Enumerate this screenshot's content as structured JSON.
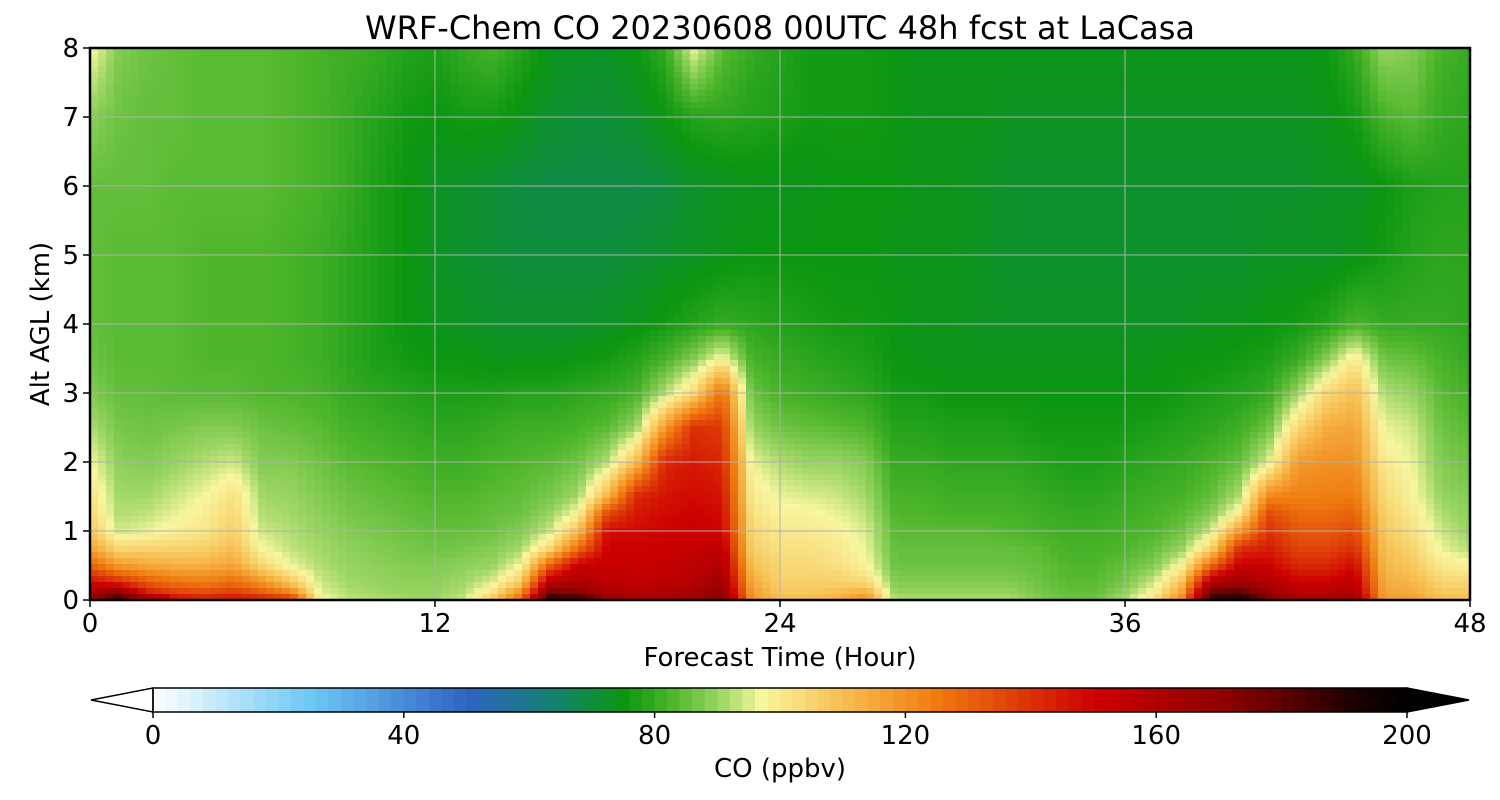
{
  "chart_data": {
    "type": "heatmap",
    "title": "WRF-Chem CO  20230608 00UTC 48h fcst at LaCasa",
    "xlabel": "Forecast Time (Hour)",
    "ylabel": "Alt AGL (km)",
    "xlim": [
      0,
      48
    ],
    "ylim": [
      0,
      8
    ],
    "xticks": [
      "0",
      "12",
      "24",
      "36",
      "48"
    ],
    "yticks": [
      "0",
      "1",
      "2",
      "3",
      "4",
      "5",
      "6",
      "7",
      "8"
    ],
    "grid": true,
    "colorbar": {
      "label": "CO  (ppbv)",
      "range": [
        0,
        200
      ],
      "ticks": [
        "0",
        "40",
        "80",
        "120",
        "160",
        "200"
      ],
      "extend": "both",
      "orientation": "horizontal",
      "stops": [
        {
          "v": 0,
          "c": "#ffffff"
        },
        {
          "v": 25,
          "c": "#6ec8f5"
        },
        {
          "v": 50,
          "c": "#2f63c4"
        },
        {
          "v": 65,
          "c": "#13846a"
        },
        {
          "v": 75,
          "c": "#0b9611"
        },
        {
          "v": 83,
          "c": "#4fb62c"
        },
        {
          "v": 91,
          "c": "#a2d868"
        },
        {
          "v": 97,
          "c": "#f8f6a0"
        },
        {
          "v": 110,
          "c": "#f7bf52"
        },
        {
          "v": 125,
          "c": "#ef7b0f"
        },
        {
          "v": 150,
          "c": "#cd0000"
        },
        {
          "v": 172,
          "c": "#8a0000"
        },
        {
          "v": 192,
          "c": "#1a0000"
        },
        {
          "v": 200,
          "c": "#000000"
        }
      ]
    },
    "field": {
      "x": [
        0,
        1,
        2,
        3,
        4,
        5,
        6,
        7,
        8,
        9,
        10,
        11,
        12,
        13,
        14,
        15,
        16,
        17,
        18,
        19,
        20,
        21,
        22,
        23,
        24,
        25,
        26,
        27,
        28,
        29,
        30,
        31,
        32,
        33,
        34,
        35,
        36,
        37,
        38,
        39,
        40,
        41,
        42,
        43,
        44,
        45,
        46,
        47,
        48
      ],
      "y": [
        0,
        0.1,
        0.25,
        0.5,
        0.75,
        1,
        1.25,
        1.5,
        2,
        2.5,
        3,
        3.5,
        4,
        5,
        6,
        7,
        8
      ],
      "z_ppbv": [
        [
          170,
          188,
          172,
          150,
          146,
          148,
          146,
          140,
          98,
          93,
          92,
          91,
          91,
          94,
          108,
          130,
          194,
          190,
          172,
          165,
          165,
          167,
          175,
          120,
          110,
          110,
          114,
          122,
          92,
          92,
          92,
          92,
          92,
          88,
          86,
          86,
          92,
          102,
          122,
          192,
          195,
          175,
          165,
          165,
          165,
          118,
          118,
          110,
          110
        ],
        [
          162,
          172,
          145,
          137,
          135,
          138,
          132,
          124,
          96,
          92,
          91,
          90,
          90,
          92,
          102,
          122,
          175,
          172,
          162,
          158,
          160,
          162,
          170,
          118,
          108,
          108,
          110,
          115,
          90,
          90,
          90,
          90,
          90,
          87,
          85,
          85,
          90,
          98,
          118,
          178,
          182,
          168,
          158,
          158,
          160,
          116,
          115,
          108,
          108
        ],
        [
          148,
          142,
          132,
          127,
          125,
          128,
          120,
          108,
          94,
          91,
          90,
          89,
          89,
          91,
          95,
          108,
          158,
          160,
          156,
          154,
          156,
          158,
          165,
          115,
          106,
          106,
          106,
          104,
          88,
          88,
          88,
          88,
          88,
          86,
          84,
          84,
          87,
          94,
          110,
          160,
          165,
          158,
          150,
          150,
          155,
          114,
          112,
          105,
          104
        ],
        [
          130,
          118,
          115,
          113,
          113,
          116,
          104,
          96,
          92,
          90,
          89,
          88,
          88,
          89,
          90,
          97,
          130,
          152,
          152,
          152,
          153,
          155,
          160,
          110,
          104,
          104,
          102,
          98,
          86,
          86,
          86,
          86,
          86,
          85,
          83,
          83,
          85,
          88,
          98,
          128,
          152,
          150,
          142,
          142,
          148,
          112,
          108,
          100,
          98
        ],
        [
          116,
          104,
          105,
          105,
          106,
          110,
          97,
          93,
          91,
          89,
          88,
          87,
          86,
          87,
          88,
          91,
          104,
          128,
          150,
          150,
          151,
          153,
          155,
          106,
          102,
          102,
          100,
          96,
          85,
          85,
          85,
          85,
          85,
          84,
          82,
          82,
          83,
          85,
          90,
          105,
          140,
          144,
          136,
          136,
          140,
          110,
          105,
          96,
          92
        ],
        [
          108,
          94,
          96,
          99,
          101,
          106,
          94,
          92,
          90,
          88,
          87,
          86,
          85,
          85,
          86,
          88,
          94,
          110,
          148,
          148,
          150,
          151,
          150,
          104,
          100,
          100,
          98,
          95,
          84,
          84,
          84,
          84,
          83,
          82,
          81,
          81,
          82,
          83,
          86,
          94,
          118,
          140,
          132,
          132,
          135,
          108,
          102,
          94,
          90
        ],
        [
          104,
          92,
          93,
          96,
          99,
          104,
          92,
          91,
          89,
          87,
          86,
          85,
          84,
          84,
          85,
          86,
          90,
          98,
          135,
          145,
          148,
          150,
          148,
          102,
          98,
          98,
          96,
          93,
          83,
          83,
          82,
          82,
          82,
          81,
          80,
          80,
          81,
          82,
          84,
          88,
          100,
          135,
          128,
          128,
          130,
          106,
          100,
          92,
          89
        ],
        [
          102,
          91,
          91,
          94,
          97,
          102,
          91,
          90,
          88,
          86,
          85,
          84,
          83,
          83,
          84,
          85,
          87,
          91,
          112,
          142,
          146,
          148,
          146,
          100,
          96,
          95,
          94,
          91,
          82,
          82,
          81,
          81,
          81,
          80,
          79,
          79,
          80,
          81,
          82,
          85,
          92,
          122,
          124,
          124,
          125,
          104,
          98,
          90,
          88
        ],
        [
          97,
          89,
          88,
          90,
          92,
          94,
          88,
          88,
          86,
          84,
          83,
          82,
          81,
          81,
          82,
          83,
          84,
          86,
          92,
          110,
          142,
          145,
          142,
          96,
          92,
          90,
          90,
          88,
          80,
          80,
          79,
          79,
          79,
          78,
          77,
          77,
          78,
          79,
          80,
          82,
          85,
          95,
          118,
          120,
          120,
          100,
          96,
          88,
          86
        ],
        [
          92,
          87,
          86,
          87,
          88,
          88,
          86,
          85,
          84,
          82,
          81,
          80,
          79,
          79,
          80,
          81,
          81,
          82,
          84,
          90,
          118,
          140,
          138,
          90,
          86,
          85,
          84,
          83,
          78,
          78,
          77,
          77,
          77,
          76,
          76,
          76,
          76,
          77,
          78,
          79,
          81,
          86,
          104,
          114,
          116,
          96,
          94,
          86,
          84
        ],
        [
          88,
          85,
          85,
          84,
          84,
          84,
          83,
          83,
          82,
          80,
          79,
          78,
          77,
          77,
          77,
          78,
          78,
          79,
          80,
          82,
          92,
          104,
          128,
          86,
          82,
          81,
          80,
          79,
          76,
          76,
          75,
          75,
          75,
          75,
          75,
          75,
          75,
          75,
          76,
          77,
          78,
          80,
          90,
          104,
          110,
          92,
          90,
          84,
          82
        ],
        [
          86,
          84,
          84,
          84,
          83,
          83,
          83,
          82,
          81,
          79,
          77,
          76,
          75,
          75,
          74,
          74,
          74,
          75,
          76,
          78,
          82,
          88,
          98,
          82,
          80,
          79,
          78,
          77,
          75,
          74,
          74,
          74,
          74,
          74,
          74,
          74,
          74,
          74,
          75,
          75,
          76,
          77,
          80,
          88,
          100,
          86,
          85,
          82,
          80
        ],
        [
          85,
          84,
          84,
          84,
          83,
          83,
          83,
          82,
          81,
          79,
          77,
          75,
          74,
          73,
          72,
          72,
          72,
          72,
          73,
          74,
          76,
          78,
          80,
          79,
          78,
          77,
          76,
          76,
          75,
          74,
          74,
          73,
          73,
          73,
          73,
          73,
          73,
          73,
          73,
          74,
          74,
          75,
          76,
          78,
          82,
          80,
          80,
          80,
          79
        ],
        [
          85,
          84,
          84,
          84,
          83,
          83,
          83,
          82,
          81,
          79,
          77,
          75,
          73,
          72,
          71,
          70,
          70,
          70,
          70,
          71,
          72,
          73,
          74,
          75,
          75,
          75,
          75,
          75,
          74,
          74,
          74,
          73,
          72,
          72,
          72,
          72,
          72,
          72,
          72,
          72,
          72,
          73,
          73,
          73,
          74,
          76,
          78,
          79,
          79
        ],
        [
          85,
          85,
          85,
          84,
          84,
          84,
          84,
          83,
          82,
          80,
          77,
          75,
          73,
          72,
          71,
          70,
          69,
          69,
          69,
          69,
          70,
          72,
          73,
          74,
          74,
          74,
          75,
          75,
          75,
          74,
          74,
          73,
          72,
          72,
          72,
          72,
          72,
          72,
          72,
          72,
          72,
          72,
          72,
          73,
          73,
          75,
          77,
          78,
          78
        ],
        [
          89,
          86,
          85,
          85,
          84,
          84,
          84,
          83,
          82,
          80,
          78,
          76,
          75,
          76,
          76,
          74,
          72,
          71,
          71,
          72,
          75,
          78,
          79,
          78,
          77,
          76,
          76,
          76,
          75,
          74,
          74,
          74,
          73,
          73,
          73,
          73,
          73,
          73,
          73,
          73,
          73,
          73,
          73,
          74,
          76,
          82,
          84,
          80,
          79
        ],
        [
          98,
          88,
          86,
          85,
          84,
          84,
          84,
          83,
          82,
          81,
          80,
          78,
          77,
          80,
          82,
          78,
          74,
          73,
          73,
          75,
          80,
          96,
          84,
          80,
          78,
          76,
          76,
          76,
          75,
          74,
          74,
          74,
          74,
          74,
          74,
          74,
          74,
          74,
          74,
          74,
          74,
          74,
          74,
          75,
          80,
          90,
          88,
          82,
          80
        ]
      ]
    }
  }
}
